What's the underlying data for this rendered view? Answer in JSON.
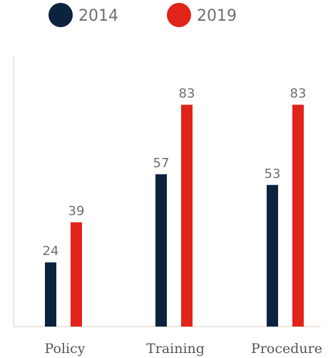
{
  "chart_data": {
    "type": "bar",
    "categories": [
      "Policy",
      "Training",
      "Procedure"
    ],
    "series": [
      {
        "name": "2014",
        "values": [
          24,
          57,
          53
        ],
        "color": "#0c2340"
      },
      {
        "name": "2019",
        "values": [
          39,
          83,
          83
        ],
        "color": "#e2231a"
      }
    ],
    "title": "",
    "xlabel": "",
    "ylabel": "",
    "ylim": [
      0,
      100
    ],
    "grid": false,
    "legend": "top-left",
    "axis_color": "#e9e6dc"
  }
}
